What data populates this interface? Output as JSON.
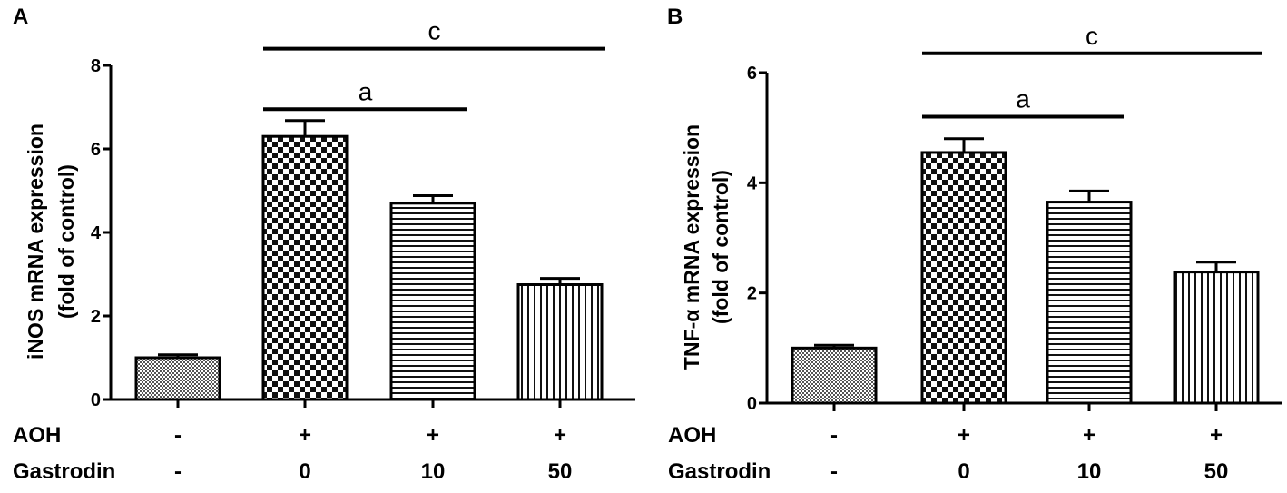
{
  "chart_data": [
    {
      "type": "bar",
      "panel": "A",
      "ylabel": "iNOS mRNA expression",
      "ylabel2": "(fold of control)",
      "ylim": [
        0,
        8
      ],
      "yticks": [
        0,
        2,
        4,
        6,
        8
      ],
      "categories": [
        "1",
        "2",
        "3",
        "4"
      ],
      "values": [
        1.0,
        6.3,
        4.7,
        2.75
      ],
      "errors": [
        0.07,
        0.38,
        0.18,
        0.15
      ],
      "patterns": [
        "dots",
        "checker",
        "hlines",
        "vlines"
      ],
      "row_labels": [
        "AOH",
        "Gastrodin"
      ],
      "conditions": [
        [
          "-",
          "-"
        ],
        [
          "+",
          "0"
        ],
        [
          "+",
          "10"
        ],
        [
          "+",
          "50"
        ]
      ],
      "significance": [
        {
          "label": "c",
          "from": 1,
          "to": 3,
          "y": 8.4
        },
        {
          "label": "a",
          "from": 1,
          "to": 2,
          "y": 6.95
        }
      ]
    },
    {
      "type": "bar",
      "panel": "B",
      "ylabel": "TNF-α  mRNA expression",
      "ylabel2": "(fold of control)",
      "ylim": [
        0,
        6
      ],
      "yticks": [
        0,
        2,
        4,
        6
      ],
      "categories": [
        "1",
        "2",
        "3",
        "4"
      ],
      "values": [
        1.0,
        4.55,
        3.65,
        2.38
      ],
      "errors": [
        0.05,
        0.25,
        0.2,
        0.18
      ],
      "patterns": [
        "dots",
        "checker",
        "hlines",
        "vlines"
      ],
      "row_labels": [
        "AOH",
        "Gastrodin"
      ],
      "conditions": [
        [
          "-",
          "-"
        ],
        [
          "+",
          "0"
        ],
        [
          "+",
          "10"
        ],
        [
          "+",
          "50"
        ]
      ],
      "significance": [
        {
          "label": "c",
          "from": 1,
          "to": 3,
          "y": 6.35
        },
        {
          "label": "a",
          "from": 1,
          "to": 2,
          "y": 5.2
        }
      ]
    }
  ]
}
